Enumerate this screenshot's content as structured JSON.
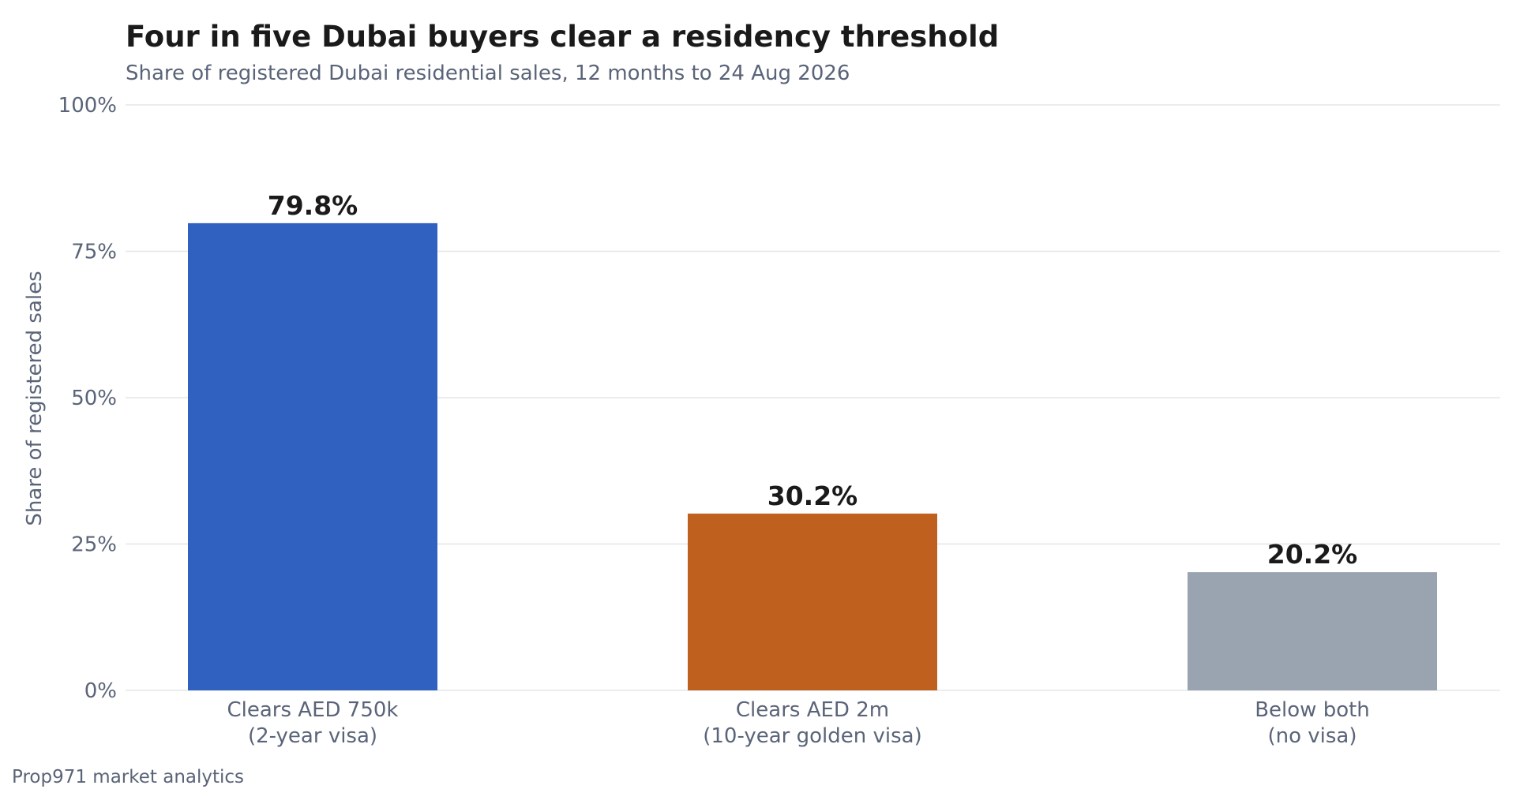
{
  "header": {
    "title": "Four in five Dubai buyers clear a residency threshold",
    "subtitle": "Share of registered Dubai residential sales, 12 months to 24 Aug 2026"
  },
  "footer": {
    "source": "Prop971 market analytics"
  },
  "colors": {
    "bars": [
      "#3060c0",
      "#c0601e",
      "#9aa3b0"
    ],
    "grid": "#e3e5e8",
    "axis_text": "#5a6478",
    "value_text": "#1a1a1a"
  },
  "chart_data": {
    "type": "bar",
    "title": "Four in five Dubai buyers clear a residency threshold",
    "subtitle": "Share of registered Dubai residential sales, 12 months to 24 Aug 2026",
    "xlabel": "",
    "ylabel": "Share of registered sales",
    "ylim": [
      0,
      100
    ],
    "y_unit": "%",
    "yticks": [
      0,
      25,
      50,
      75,
      100
    ],
    "ytick_labels": [
      "0%",
      "25%",
      "50%",
      "75%",
      "100%"
    ],
    "grid": true,
    "legend": false,
    "categories": [
      [
        "Clears AED 750k",
        "(2-year visa)"
      ],
      [
        "Clears AED 2m",
        "(10-year golden visa)"
      ],
      [
        "Below both",
        "(no visa)"
      ]
    ],
    "values": [
      79.8,
      30.2,
      20.2
    ],
    "data_labels": [
      "79.8%",
      "30.2%",
      "20.2%"
    ]
  }
}
